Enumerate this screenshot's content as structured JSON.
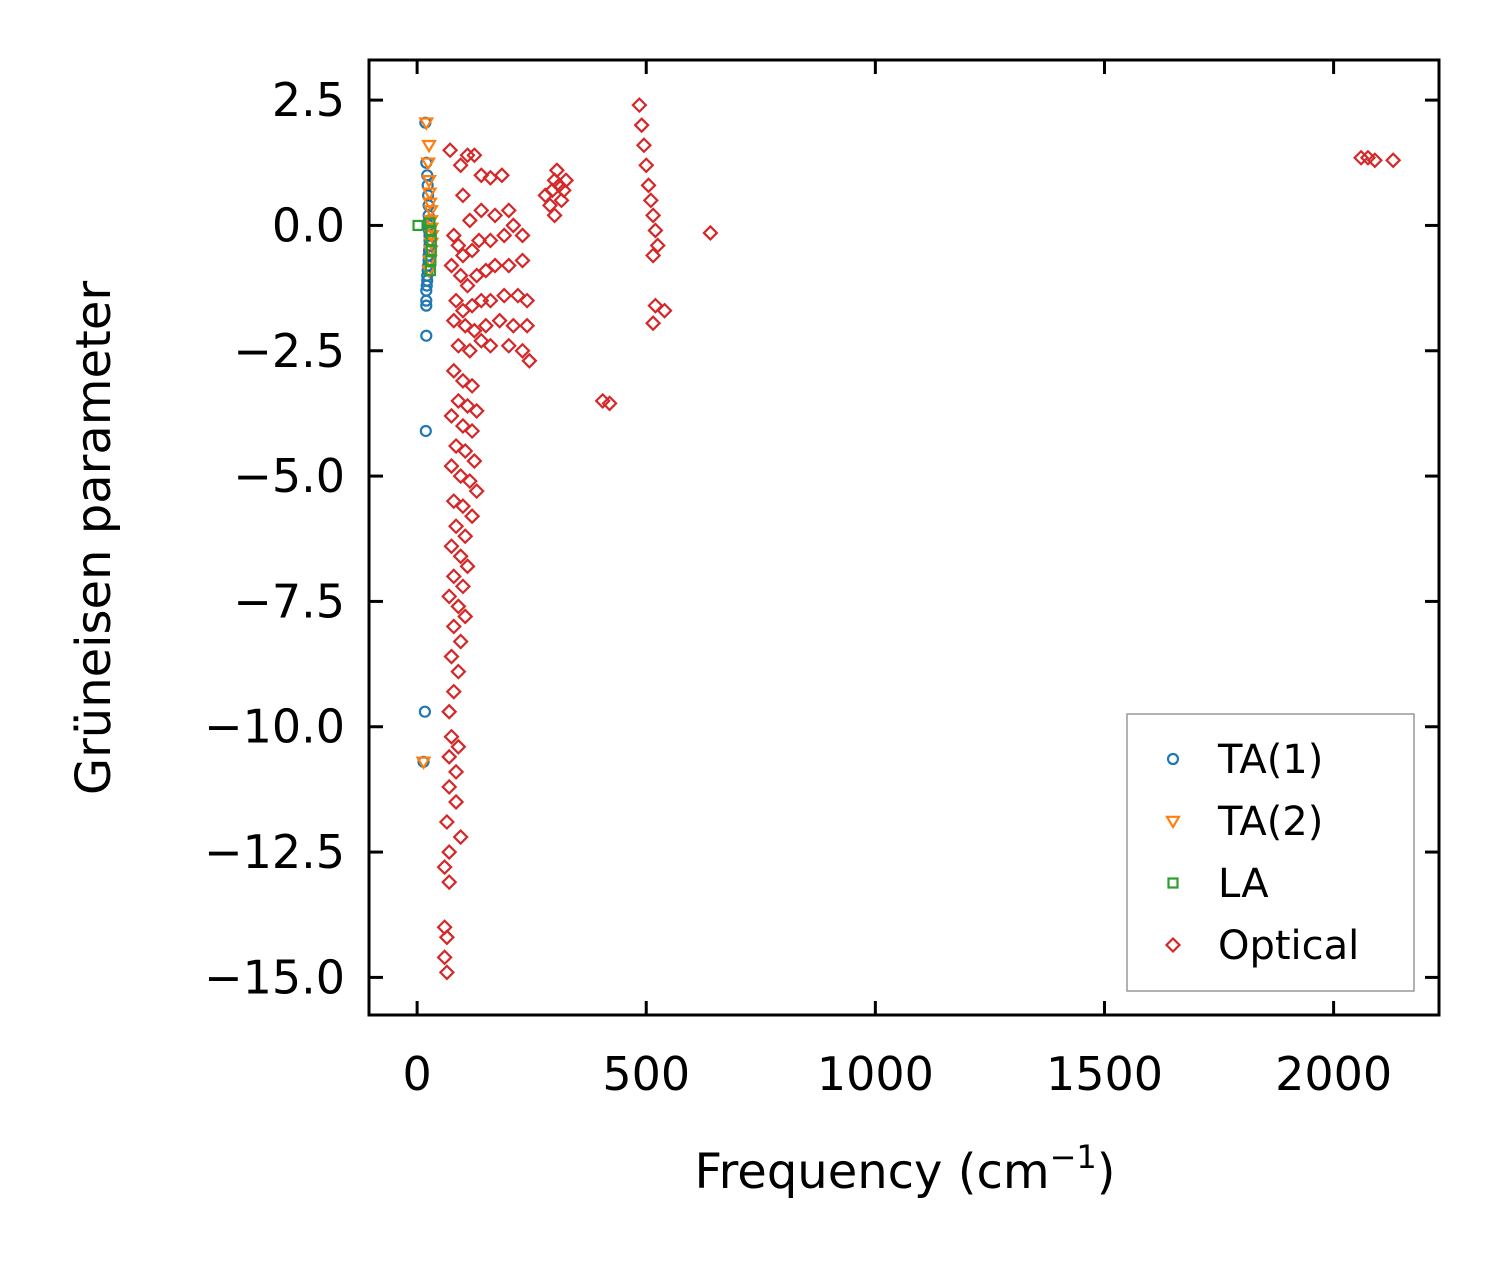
{
  "chart_data": {
    "type": "scatter",
    "title": "",
    "xlabel": "Frequency (cm",
    "xlabel_sup": "−1",
    "xlabel_end": ")",
    "ylabel": "Grüneisen parameter",
    "xlim": [
      -105,
      2230
    ],
    "ylim": [
      -15.75,
      3.3
    ],
    "xticks": [
      0,
      500,
      1000,
      1500,
      2000
    ],
    "xtick_labels": [
      "0",
      "500",
      "1000",
      "1500",
      "2000"
    ],
    "yticks": [
      2.5,
      0.0,
      -2.5,
      -5.0,
      -7.5,
      -10.0,
      -12.5,
      -15.0
    ],
    "ytick_labels": [
      "2.5",
      "0.0",
      "−2.5",
      "−5.0",
      "−7.5",
      "−10.0",
      "−12.5",
      "−15.0"
    ],
    "grid": false,
    "legend_position": "lower-right",
    "series": [
      {
        "name": "TA(1)",
        "marker": "circle",
        "color": "#1f77b4",
        "points": [
          [
            18,
            2.05
          ],
          [
            20,
            1.25
          ],
          [
            22,
            1.0
          ],
          [
            23,
            0.8
          ],
          [
            24,
            0.6
          ],
          [
            25,
            0.4
          ],
          [
            25,
            0.2
          ],
          [
            26,
            0.1
          ],
          [
            26,
            0.0
          ],
          [
            26,
            -0.1
          ],
          [
            27,
            -0.2
          ],
          [
            27,
            -0.3
          ],
          [
            27,
            -0.4
          ],
          [
            26,
            -0.5
          ],
          [
            25,
            -0.6
          ],
          [
            25,
            -0.7
          ],
          [
            24,
            -0.8
          ],
          [
            23,
            -0.9
          ],
          [
            22,
            -1.0
          ],
          [
            22,
            -1.1
          ],
          [
            21,
            -1.2
          ],
          [
            20,
            -1.3
          ],
          [
            20,
            -1.5
          ],
          [
            20,
            -1.6
          ],
          [
            20,
            -2.2
          ],
          [
            19,
            -4.1
          ],
          [
            17,
            -9.7
          ],
          [
            14,
            -10.7
          ]
        ]
      },
      {
        "name": "TA(2)",
        "marker": "triangle-down",
        "color": "#ff7f0e",
        "points": [
          [
            20,
            2.05
          ],
          [
            26,
            1.6
          ],
          [
            24,
            1.25
          ],
          [
            26,
            0.9
          ],
          [
            27,
            0.65
          ],
          [
            28,
            0.45
          ],
          [
            30,
            0.3
          ],
          [
            30,
            0.1
          ],
          [
            31,
            -0.05
          ],
          [
            32,
            -0.2
          ],
          [
            31,
            -0.35
          ],
          [
            30,
            -0.5
          ],
          [
            28,
            -0.7
          ],
          [
            26,
            -0.9
          ],
          [
            14,
            -10.7
          ]
        ]
      },
      {
        "name": "LA",
        "marker": "square",
        "color": "#2ca02c",
        "points": [
          [
            2,
            0.0
          ],
          [
            28,
            0.05
          ],
          [
            30,
            -0.1
          ],
          [
            31,
            -0.3
          ],
          [
            31,
            -0.5
          ],
          [
            30,
            -0.7
          ],
          [
            29,
            -0.9
          ]
        ]
      },
      {
        "name": "Optical",
        "marker": "diamond",
        "color": "#d62728",
        "points": [
          [
            72,
            1.5
          ],
          [
            95,
            1.2
          ],
          [
            110,
            1.4
          ],
          [
            125,
            1.4
          ],
          [
            140,
            1.0
          ],
          [
            160,
            0.95
          ],
          [
            185,
            1.0
          ],
          [
            100,
            0.6
          ],
          [
            115,
            0.1
          ],
          [
            140,
            0.3
          ],
          [
            170,
            0.2
          ],
          [
            200,
            0.3
          ],
          [
            210,
            0.0
          ],
          [
            80,
            -0.2
          ],
          [
            90,
            -0.4
          ],
          [
            100,
            -0.6
          ],
          [
            120,
            -0.5
          ],
          [
            135,
            -0.3
          ],
          [
            160,
            -0.3
          ],
          [
            190,
            -0.2
          ],
          [
            230,
            -0.2
          ],
          [
            75,
            -0.8
          ],
          [
            95,
            -1.0
          ],
          [
            110,
            -1.2
          ],
          [
            130,
            -1.0
          ],
          [
            150,
            -0.9
          ],
          [
            170,
            -0.8
          ],
          [
            200,
            -0.8
          ],
          [
            230,
            -0.7
          ],
          [
            85,
            -1.5
          ],
          [
            100,
            -1.7
          ],
          [
            120,
            -1.6
          ],
          [
            140,
            -1.5
          ],
          [
            160,
            -1.5
          ],
          [
            190,
            -1.4
          ],
          [
            220,
            -1.4
          ],
          [
            240,
            -1.5
          ],
          [
            80,
            -1.9
          ],
          [
            105,
            -2.0
          ],
          [
            125,
            -2.1
          ],
          [
            150,
            -2.0
          ],
          [
            180,
            -1.9
          ],
          [
            210,
            -2.0
          ],
          [
            240,
            -2.0
          ],
          [
            90,
            -2.4
          ],
          [
            115,
            -2.5
          ],
          [
            140,
            -2.3
          ],
          [
            160,
            -2.4
          ],
          [
            200,
            -2.4
          ],
          [
            230,
            -2.5
          ],
          [
            245,
            -2.7
          ],
          [
            80,
            -2.9
          ],
          [
            100,
            -3.1
          ],
          [
            120,
            -3.2
          ],
          [
            90,
            -3.5
          ],
          [
            110,
            -3.6
          ],
          [
            130,
            -3.7
          ],
          [
            75,
            -3.8
          ],
          [
            100,
            -4.0
          ],
          [
            120,
            -4.1
          ],
          [
            85,
            -4.4
          ],
          [
            105,
            -4.5
          ],
          [
            125,
            -4.7
          ],
          [
            75,
            -4.8
          ],
          [
            95,
            -5.0
          ],
          [
            115,
            -5.1
          ],
          [
            130,
            -5.3
          ],
          [
            80,
            -5.5
          ],
          [
            100,
            -5.6
          ],
          [
            120,
            -5.8
          ],
          [
            85,
            -6.0
          ],
          [
            105,
            -6.2
          ],
          [
            75,
            -6.4
          ],
          [
            95,
            -6.6
          ],
          [
            110,
            -6.8
          ],
          [
            80,
            -7.0
          ],
          [
            100,
            -7.2
          ],
          [
            70,
            -7.4
          ],
          [
            90,
            -7.6
          ],
          [
            105,
            -7.8
          ],
          [
            80,
            -8.0
          ],
          [
            95,
            -8.3
          ],
          [
            75,
            -8.6
          ],
          [
            90,
            -8.9
          ],
          [
            80,
            -9.3
          ],
          [
            70,
            -9.7
          ],
          [
            75,
            -10.2
          ],
          [
            90,
            -10.4
          ],
          [
            70,
            -10.6
          ],
          [
            85,
            -10.9
          ],
          [
            70,
            -11.2
          ],
          [
            85,
            -11.5
          ],
          [
            65,
            -11.9
          ],
          [
            95,
            -12.2
          ],
          [
            70,
            -12.5
          ],
          [
            60,
            -12.8
          ],
          [
            70,
            -13.1
          ],
          [
            60,
            -14.0
          ],
          [
            65,
            -14.2
          ],
          [
            60,
            -14.6
          ],
          [
            65,
            -14.9
          ],
          [
            290,
            0.4
          ],
          [
            295,
            0.7
          ],
          [
            300,
            0.9
          ],
          [
            305,
            1.1
          ],
          [
            310,
            0.8
          ],
          [
            315,
            0.5
          ],
          [
            320,
            0.7
          ],
          [
            325,
            0.9
          ],
          [
            300,
            0.2
          ],
          [
            280,
            0.6
          ],
          [
            485,
            2.4
          ],
          [
            490,
            2.0
          ],
          [
            495,
            1.6
          ],
          [
            500,
            1.2
          ],
          [
            505,
            0.8
          ],
          [
            510,
            0.5
          ],
          [
            515,
            0.2
          ],
          [
            520,
            -0.1
          ],
          [
            525,
            -0.4
          ],
          [
            515,
            -0.6
          ],
          [
            520,
            -1.6
          ],
          [
            540,
            -1.7
          ],
          [
            515,
            -1.95
          ],
          [
            640,
            -0.15
          ],
          [
            405,
            -3.5
          ],
          [
            420,
            -3.55
          ],
          [
            2060,
            1.35
          ],
          [
            2075,
            1.35
          ],
          [
            2090,
            1.3
          ],
          [
            2130,
            1.3
          ]
        ]
      }
    ]
  },
  "legend": {
    "items": [
      "TA(1)",
      "TA(2)",
      "LA",
      "Optical"
    ]
  }
}
